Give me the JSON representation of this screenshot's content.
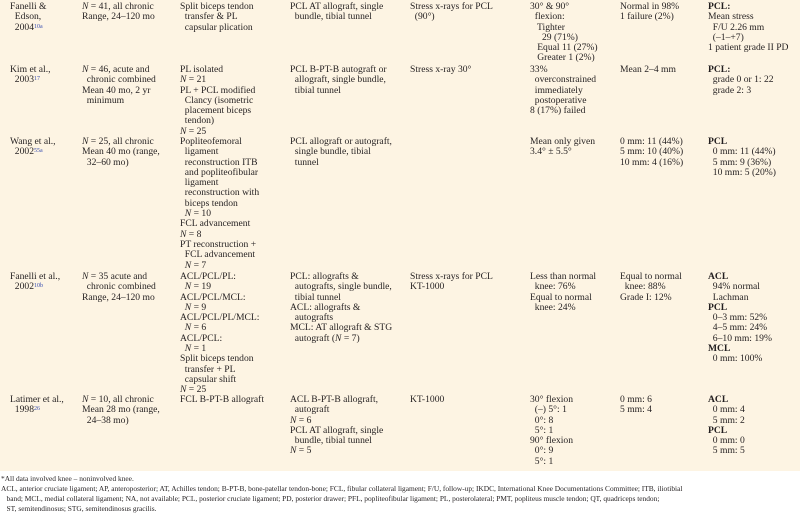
{
  "rows": [
    {
      "author": {
        "lines": [
          "Fanelli &",
          "  Edson,",
          "  2004"
        ],
        "ref": "10a"
      },
      "cells": [
        [
          "N = 41, all chronic",
          "Range, 24–120 mo"
        ],
        [
          "Split biceps tendon",
          "  transfer & PL",
          "  capsular plication"
        ],
        [
          "PCL AT allograft, single",
          "  bundle, tibial tunnel"
        ],
        [
          "Stress x-rays for PCL",
          "  (90°)"
        ],
        [
          "30° & 90°",
          "  flexion:",
          "   Tighter",
          "     29 (71%)",
          "   Equal 11 (27%)",
          "   Greater 1 (2%)"
        ],
        [
          "Normal in 98%",
          "1 failure (2%)"
        ],
        [
          {
            "b": "PCL:"
          },
          "Mean stress",
          "  F/U 2.26 mm",
          "  (–1–+7)",
          "1 patient grade II PD"
        ]
      ]
    },
    {
      "author": {
        "lines": [
          "Kim et al.,",
          "  2003"
        ],
        "ref": "17"
      },
      "cells": [
        [
          "N = 46, acute and",
          "  chronic combined",
          "Mean 40 mo, 2 yr",
          "  minimum"
        ],
        [
          "PL isolated",
          "N = 21",
          "PL + PCL modified",
          "  Clancy (isometric",
          "  placement biceps",
          "  tendon)",
          "N = 25"
        ],
        [
          "PCL B-PT-B autograft or",
          "  allograft, single bundle,",
          "  tibial tunnel"
        ],
        [
          "Stress x-ray 30°"
        ],
        [
          "33%",
          "  overconstrained",
          "  immediately",
          "  postoperative",
          "8 (17%) failed"
        ],
        [
          "Mean 2–4 mm"
        ],
        [
          {
            "b": "PCL:"
          },
          "  grade 0 or 1: 22",
          "  grade 2: 3"
        ]
      ]
    },
    {
      "author": {
        "lines": [
          "Wang et al.,",
          "  2002"
        ],
        "ref": "55a"
      },
      "cells": [
        [
          "N = 25, all chronic",
          "Mean 40 mo (range,",
          "  32–60 mo)"
        ],
        [
          "Popliteofemoral",
          "  ligament",
          "  reconstruction ITB",
          "  and popliteofibular",
          "  ligament",
          "  reconstruction with",
          "  biceps tendon",
          "  N = 10",
          "FCL advancement",
          "N = 8",
          "PT reconstruction +",
          "  FCL advancement",
          "  N = 7"
        ],
        [
          "PCL allograft or autograft,",
          "  single bundle, tibial",
          "  tunnel"
        ],
        [],
        [
          "Mean only given",
          "3.4° ± 5.5°"
        ],
        [
          "0 mm: 11 (44%)",
          "5 mm: 10 (40%)",
          "10 mm: 4 (16%)"
        ],
        [
          {
            "b": "PCL"
          },
          "  0 mm: 11 (44%)",
          "  5 mm: 9 (36%)",
          "  10 mm: 5 (20%)"
        ]
      ]
    },
    {
      "author": {
        "lines": [
          "Fanelli et al.,",
          "  2002"
        ],
        "ref": "10b"
      },
      "cells": [
        [
          "N = 35 acute and",
          "  chronic combined",
          "Range, 24–120 mo"
        ],
        [
          "ACL/PCL/PL:",
          "  N = 19",
          "ACL/PCL/MCL:",
          "  N = 9",
          "ACL/PCL/PL/MCL:",
          "  N = 6",
          "ACL/PCL:",
          "  N = 1",
          "Split biceps tendon",
          "  transfer + PL",
          "  capsular shift",
          "N = 25"
        ],
        [
          "PCL: allografts &",
          "  autografts, single bundle,",
          "  tibial tunnel",
          "ACL: allografts &",
          "  autografts",
          "MCL: AT allograft & STG",
          "  autograft (N = 7)"
        ],
        [
          "Stress x-rays for PCL",
          "KT-1000"
        ],
        [
          "Less than normal",
          "  knee: 76%",
          "Equal to normal",
          "  knee: 24%"
        ],
        [
          "Equal to normal",
          "  knee: 88%",
          "Grade I: 12%"
        ],
        [
          {
            "b": "ACL"
          },
          "  94% normal",
          "  Lachman",
          {
            "b": "PCL"
          },
          "  0–3 mm: 52%",
          "  4–5 mm: 24%",
          "  6–10 mm: 19%",
          {
            "b": "MCL"
          },
          "  0 mm: 100%"
        ]
      ]
    },
    {
      "author": {
        "lines": [
          "Latimer et al.,",
          "  1998"
        ],
        "ref": "26"
      },
      "cells": [
        [
          "N = 10, all chronic",
          "Mean 28 mo (range,",
          "  24–38 mo)"
        ],
        [
          "FCL B-PT-B allograft"
        ],
        [
          "ACL B-PT-B allograft,",
          "  autograft",
          "N = 6",
          "PCL AT allograft, single",
          "  bundle, tibial tunnel",
          "N = 5"
        ],
        [
          "KT-1000"
        ],
        [
          "30° flexion",
          "  (–) 5°: 1",
          "  0°: 8",
          "  5°: 1",
          "90° flexion",
          "  0°: 9",
          "  5°: 1"
        ],
        [
          "0 mm: 6",
          "5 mm: 4"
        ],
        [
          {
            "b": "ACL"
          },
          "  0 mm: 4",
          "  5 mm: 2",
          {
            "b": "PCL"
          },
          "  0 mm: 0",
          "  5 mm: 5"
        ]
      ]
    }
  ],
  "footnotes": [
    "*All data involved knee – noninvolved knee.",
    "ACL, anterior cruciate ligament; AP, anteroposterior; AT, Achilles tendon; B-PT-B, bone-patellar tendon-bone; FCL, fibular collateral ligament; F/U, follow-up; IKDC, International Knee Documentations Committee; ITB, iliotibial",
    "   band; MCL, medial collateral ligament; NA, not available; PCL, posterior cruciate ligament; PD, posterior drawer; PFL, popliteofibular ligament; PL, posterolateral; PMT, popliteus muscle tendon; QT, quadriceps tendon;",
    "   ST, semitendinosus; STG, semitendinosus gracilis."
  ]
}
